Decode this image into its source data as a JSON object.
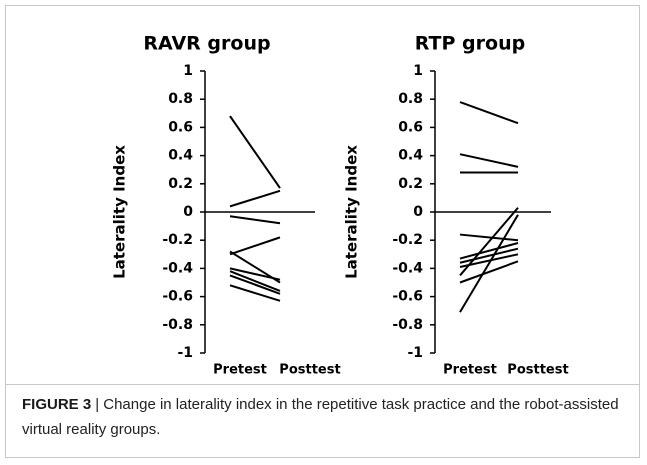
{
  "chart_data": [
    {
      "type": "slope",
      "title": "RAVR group",
      "ylabel": "Laterality Index",
      "categories": [
        "Pretest",
        "Posttest"
      ],
      "color": "#000000",
      "ylim": [
        -1,
        1
      ],
      "yticks": [
        1,
        0.8,
        0.6,
        0.4,
        0.2,
        0,
        -0.2,
        -0.4,
        -0.6,
        -0.8,
        -1
      ],
      "series": [
        {
          "values": [
            0.68,
            0.17
          ]
        },
        {
          "values": [
            0.04,
            0.15
          ]
        },
        {
          "values": [
            -0.03,
            -0.08
          ]
        },
        {
          "values": [
            -0.3,
            -0.18
          ]
        },
        {
          "values": [
            -0.28,
            -0.5
          ]
        },
        {
          "values": [
            -0.4,
            -0.48
          ]
        },
        {
          "values": [
            -0.42,
            -0.56
          ]
        },
        {
          "values": [
            -0.45,
            -0.58
          ]
        },
        {
          "values": [
            -0.52,
            -0.63
          ]
        }
      ]
    },
    {
      "type": "slope",
      "title": "RTP group",
      "ylabel": "Laterality Index",
      "categories": [
        "Pretest",
        "Posttest"
      ],
      "color": "#000000",
      "ylim": [
        -1,
        1
      ],
      "yticks": [
        1,
        0.8,
        0.6,
        0.4,
        0.2,
        0,
        -0.2,
        -0.4,
        -0.6,
        -0.8,
        -1
      ],
      "series": [
        {
          "values": [
            0.78,
            0.63
          ]
        },
        {
          "values": [
            0.41,
            0.32
          ]
        },
        {
          "values": [
            0.28,
            0.28
          ]
        },
        {
          "values": [
            -0.16,
            -0.2
          ]
        },
        {
          "values": [
            -0.33,
            -0.22
          ]
        },
        {
          "values": [
            -0.36,
            -0.26
          ]
        },
        {
          "values": [
            -0.45,
            0.03
          ]
        },
        {
          "values": [
            -0.5,
            -0.35
          ]
        },
        {
          "values": [
            -0.71,
            -0.02
          ]
        },
        {
          "values": [
            -0.39,
            -0.3
          ]
        }
      ]
    }
  ],
  "caption": {
    "label": "FIGURE 3",
    "text": "| Change in laterality index in the repetitive task practice and the robot-assisted virtual reality groups."
  }
}
